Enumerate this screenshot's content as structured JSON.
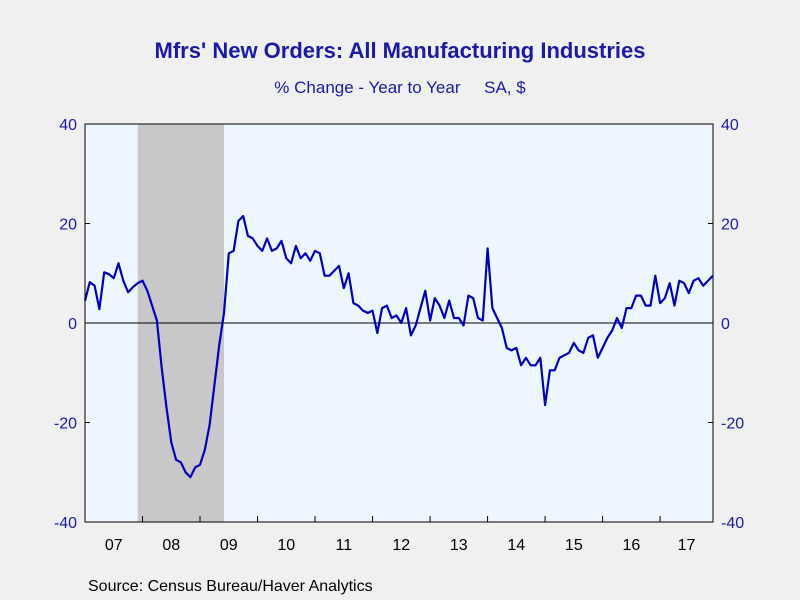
{
  "chart_data": {
    "type": "line",
    "title": "Mfrs' New Orders: All Manufacturing Industries",
    "subtitle": "% Change - Year to Year     SA, $",
    "source": "Source:  Census Bureau/Haver Analytics",
    "ylim": [
      -40,
      40
    ],
    "y_ticks": [
      -40,
      -20,
      0,
      20,
      40
    ],
    "x_range": [
      2007.0,
      2017.92
    ],
    "x_tick_labels": [
      {
        "label": "07",
        "year": 2007
      },
      {
        "label": "08",
        "year": 2008
      },
      {
        "label": "09",
        "year": 2009
      },
      {
        "label": "10",
        "year": 2010
      },
      {
        "label": "11",
        "year": 2011
      },
      {
        "label": "12",
        "year": 2012
      },
      {
        "label": "13",
        "year": 2013
      },
      {
        "label": "14",
        "year": 2014
      },
      {
        "label": "15",
        "year": 2015
      },
      {
        "label": "16",
        "year": 2016
      },
      {
        "label": "17",
        "year": 2017
      }
    ],
    "recession": {
      "start": "2007-12",
      "end": "2009-06"
    },
    "grid": false,
    "colors": {
      "line": "#0000c0",
      "recession": "#c8c8c8",
      "plot_bg": "#eef6ff",
      "text": "#1a1aa6"
    },
    "series": [
      {
        "dates": [
          "2007-01",
          "2007-02",
          "2007-03",
          "2007-04",
          "2007-05",
          "2007-06",
          "2007-07",
          "2007-08",
          "2007-09",
          "2007-10",
          "2007-11",
          "2007-12",
          "2008-01",
          "2008-02",
          "2008-03",
          "2008-04",
          "2008-05",
          "2008-06",
          "2008-07",
          "2008-08",
          "2008-09",
          "2008-10",
          "2008-11",
          "2008-12",
          "2009-01",
          "2009-02",
          "2009-03",
          "2009-04",
          "2009-05",
          "2009-06",
          "2009-07",
          "2009-08",
          "2009-09",
          "2009-10",
          "2009-11",
          "2009-12",
          "2010-01",
          "2010-02",
          "2010-03",
          "2010-04",
          "2010-05",
          "2010-06",
          "2010-07",
          "2010-08",
          "2010-09",
          "2010-10",
          "2010-11",
          "2010-12",
          "2011-01",
          "2011-02",
          "2011-03",
          "2011-04",
          "2011-05",
          "2011-06",
          "2011-07",
          "2011-08",
          "2011-09",
          "2011-10",
          "2011-11",
          "2011-12",
          "2012-01",
          "2012-02",
          "2012-03",
          "2012-04",
          "2012-05",
          "2012-06",
          "2012-07",
          "2012-08",
          "2012-09",
          "2012-10",
          "2012-11",
          "2012-12",
          "2013-01",
          "2013-02",
          "2013-03",
          "2013-04",
          "2013-05",
          "2013-06",
          "2013-07",
          "2013-08",
          "2013-09",
          "2013-10",
          "2013-11",
          "2013-12",
          "2014-01",
          "2014-02",
          "2014-03",
          "2014-04",
          "2014-05",
          "2014-06",
          "2014-07",
          "2014-08",
          "2014-09",
          "2014-10",
          "2014-11",
          "2014-12",
          "2015-01",
          "2015-02",
          "2015-03",
          "2015-04",
          "2015-05",
          "2015-06",
          "2015-07",
          "2015-08",
          "2015-09",
          "2015-10",
          "2015-11",
          "2015-12",
          "2016-01",
          "2016-02",
          "2016-03",
          "2016-04",
          "2016-05",
          "2016-06",
          "2016-07",
          "2016-08",
          "2016-09",
          "2016-10",
          "2016-11",
          "2016-12",
          "2017-01",
          "2017-02",
          "2017-03",
          "2017-04",
          "2017-05",
          "2017-06",
          "2017-07",
          "2017-08",
          "2017-09",
          "2017-10",
          "2017-11",
          "2017-12"
        ],
        "values": [
          4.5,
          8.2,
          7.5,
          2.8,
          10.2,
          9.8,
          9.0,
          12.0,
          8.5,
          6.2,
          7.2,
          8.0,
          8.5,
          6.5,
          3.5,
          0.5,
          -9.0,
          -17.0,
          -24.0,
          -27.5,
          -28.0,
          -30.0,
          -31.0,
          -29.0,
          -28.5,
          -25.5,
          -20.5,
          -12.5,
          -4.5,
          2.0,
          14.0,
          14.5,
          20.5,
          21.5,
          17.5,
          17.0,
          15.5,
          14.5,
          17.0,
          14.5,
          15.0,
          16.5,
          13.0,
          12.0,
          15.5,
          13.0,
          14.0,
          12.5,
          14.5,
          14.0,
          9.5,
          9.5,
          10.5,
          11.5,
          7.0,
          10.0,
          4.0,
          3.5,
          2.5,
          2.0,
          2.5,
          -2.0,
          3.0,
          3.5,
          1.0,
          1.5,
          0.0,
          3.0,
          -2.5,
          -0.5,
          3.0,
          6.5,
          0.5,
          5.0,
          3.5,
          1.0,
          4.5,
          1.0,
          1.0,
          -0.5,
          5.5,
          5.0,
          1.0,
          0.5,
          15.0,
          3.0,
          1.0,
          -1.0,
          -5.0,
          -5.5,
          -5.0,
          -8.5,
          -7.0,
          -8.5,
          -8.5,
          -7.0,
          -16.5,
          -9.5,
          -9.5,
          -7.0,
          -6.5,
          -6.0,
          -4.0,
          -5.5,
          -6.0,
          -3.0,
          -2.5,
          -7.0,
          -5.0,
          -3.0,
          -1.5,
          1.0,
          -1.0,
          3.0,
          3.0,
          5.5,
          5.5,
          3.5,
          3.5,
          9.5,
          4.0,
          5.0,
          8.0,
          3.5,
          8.5,
          8.0,
          6.0,
          8.5,
          9.0,
          7.5,
          8.5,
          9.5
        ]
      }
    ]
  }
}
